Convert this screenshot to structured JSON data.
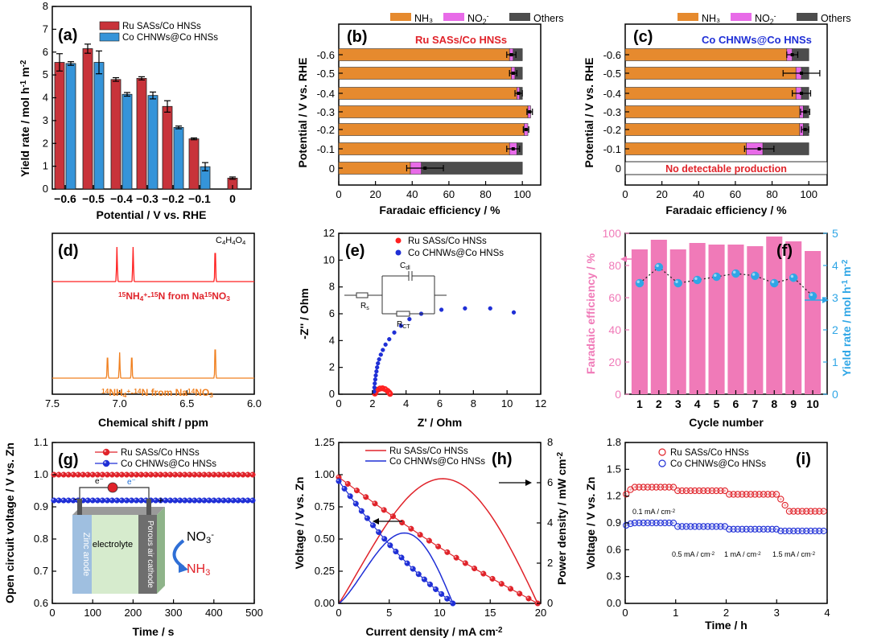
{
  "chart_data": [
    {
      "id": "a",
      "type": "bar",
      "panel_label": "(a)",
      "xlabel": "Potential / V vs. RHE",
      "ylabel": "Yield rate / mol h⁻¹ m⁻²",
      "categories": [
        "-0.6",
        "-0.5",
        "-0.4",
        "-0.3",
        "-0.2",
        "-0.1",
        "0"
      ],
      "ylim": [
        0,
        8
      ],
      "yticks": [
        0,
        1,
        2,
        3,
        4,
        5,
        6,
        7,
        8
      ],
      "legend_position": "top-right",
      "series": [
        {
          "name": "Ru SASs/Co HNSs",
          "color": "#c8333a",
          "values": [
            5.55,
            6.15,
            4.8,
            4.85,
            3.62,
            2.2,
            0.48
          ],
          "errors": [
            0.38,
            0.2,
            0.08,
            0.07,
            0.25,
            0.04,
            0.05
          ]
        },
        {
          "name": "Co CHNWs@Co HNSs",
          "color": "#3594d9",
          "values": [
            5.5,
            5.55,
            4.15,
            4.1,
            2.7,
            0.98,
            null
          ],
          "errors": [
            0.08,
            0.5,
            0.08,
            0.15,
            0.06,
            0.18,
            null
          ]
        }
      ],
      "tick_labels_x": [
        "−0.6",
        "−0.5",
        "−0.4",
        "−0.3",
        "−0.2",
        "−0.1",
        "0"
      ]
    },
    {
      "id": "b",
      "type": "bar",
      "orientation": "horizontal-stacked",
      "panel_label": "(b)",
      "title": "Ru SASs/Co HNSs",
      "title_color": "#e0232a",
      "xlabel": "Faradaic efficiency / %",
      "ylabel": "Potential / V vs. RHE",
      "categories": [
        "-0.6",
        "-0.5",
        "-0.4",
        "-0.3",
        "-0.2",
        "-0.1",
        "0"
      ],
      "xlim": [
        0,
        110
      ],
      "xticks": [
        0,
        20,
        40,
        60,
        80,
        100
      ],
      "legend_position": "top",
      "series": [
        {
          "name": "NH₃",
          "color": "#e68a2e",
          "values": [
            93,
            94,
            97,
            103,
            101,
            93,
            39
          ]
        },
        {
          "name": "NO₂⁻",
          "color": "#e86be8",
          "values": [
            2,
            2,
            1.5,
            1.5,
            2,
            4,
            6
          ]
        },
        {
          "name": "Others",
          "color": "#4d4d4d",
          "values": [
            5,
            4,
            1.5,
            0,
            0,
            3,
            55
          ]
        }
      ],
      "error_center": [
        94,
        95,
        98,
        104,
        102,
        95,
        47
      ],
      "error_width": [
        2.5,
        2,
        2,
        1.5,
        1.5,
        3.5,
        10
      ]
    },
    {
      "id": "c",
      "type": "bar",
      "orientation": "horizontal-stacked",
      "panel_label": "(c)",
      "title": "Co CHNWs@Co HNSs",
      "title_color": "#1f2fd6",
      "annotation": "No detectable production",
      "annotation_color": "#e0232a",
      "xlabel": "Faradaic efficiency / %",
      "ylabel": "Potential / V vs. RHE",
      "categories": [
        "-0.6",
        "-0.5",
        "-0.4",
        "-0.3",
        "-0.2",
        "-0.1",
        "0"
      ],
      "xlim": [
        0,
        110
      ],
      "xticks": [
        0,
        20,
        40,
        60,
        80,
        100
      ],
      "legend_position": "top",
      "series": [
        {
          "name": "NH₃",
          "color": "#e68a2e",
          "values": [
            88,
            93,
            93,
            95,
            95,
            66,
            0
          ]
        },
        {
          "name": "NO₂⁻",
          "color": "#e86be8",
          "values": [
            3,
            3,
            3,
            2,
            2,
            9,
            0
          ]
        },
        {
          "name": "Others",
          "color": "#4d4d4d",
          "values": [
            9,
            4,
            4,
            3,
            3,
            25,
            0
          ]
        }
      ],
      "error_center": [
        91,
        96,
        96,
        98,
        98,
        73,
        null
      ],
      "error_width": [
        3,
        10,
        5,
        2.5,
        2,
        8,
        null
      ]
    },
    {
      "id": "d",
      "type": "line",
      "panel_label": "(d)",
      "xlabel": "Chemical shift / ppm",
      "xlim": [
        7.5,
        6.0
      ],
      "xticks": [
        7.5,
        7.0,
        6.5,
        6.0
      ],
      "tick_labels_x": [
        "7.5",
        "7.0",
        "6.5",
        "6.0"
      ],
      "series": [
        {
          "name": "¹⁵NH₄⁺-¹⁵N from Na¹⁵NO₃",
          "color": "#ff2020",
          "doublet_ppm": [
            7.02,
            6.9
          ],
          "reference_peak_ppm": 6.29
        },
        {
          "name": "¹⁴NH₄⁺-¹⁴N from Na¹⁴NO₃",
          "color": "#f08020",
          "triplet_ppm": [
            7.09,
            7.0,
            6.91
          ],
          "reference_peak_ppm": 6.29
        }
      ],
      "annotations": [
        "C₄H₄O₄",
        "¹⁵NH₄⁺-¹⁵N from Na¹⁵NO₃",
        "¹⁴NH₄⁺-¹⁴N from Na¹⁴NO₃"
      ]
    },
    {
      "id": "e",
      "type": "scatter",
      "panel_label": "(e)",
      "xlabel": "Z' / Ohm",
      "ylabel": "-Z'' / Ohm",
      "xlim": [
        0,
        12
      ],
      "ylim": [
        0,
        12
      ],
      "xticks": [
        0,
        2,
        4,
        6,
        8,
        10,
        12
      ],
      "yticks": [
        0,
        2,
        4,
        6,
        8,
        10,
        12
      ],
      "legend_position": "top-right",
      "circuit_labels": {
        "dl": "C",
        "dl_sub": "dl",
        "s": "R",
        "s_sub": "s",
        "ct": "R",
        "ct_sub": "CT"
      },
      "series": [
        {
          "name": "Ru SASs/Co HNSs",
          "color": "#ff2020",
          "x": [
            2.15,
            2.2,
            2.3,
            2.45,
            2.6,
            2.75,
            2.9,
            3.0,
            3.05
          ],
          "y": [
            0.05,
            0.2,
            0.33,
            0.42,
            0.44,
            0.38,
            0.25,
            0.12,
            0.03
          ]
        },
        {
          "name": "Co CHNWs@Co HNSs",
          "color": "#1f2fd6",
          "x": [
            2.1,
            2.12,
            2.14,
            2.17,
            2.2,
            2.24,
            2.28,
            2.33,
            2.4,
            2.5,
            2.62,
            2.78,
            3.0,
            3.3,
            3.7,
            4.2,
            4.9,
            6.1,
            7.5,
            9.0,
            10.4
          ],
          "y": [
            0.2,
            0.5,
            0.8,
            1.1,
            1.4,
            1.7,
            2.0,
            2.3,
            2.6,
            2.95,
            3.3,
            3.7,
            4.1,
            4.6,
            5.1,
            5.6,
            6.0,
            6.3,
            6.4,
            6.4,
            6.1
          ]
        }
      ]
    },
    {
      "id": "f",
      "type": "bar",
      "panel_label": "(f)",
      "xlabel": "Cycle number",
      "ylabel": "Faradaic efficiency / %",
      "ylabel_right": "Yield rate / mol h⁻¹ m⁻²",
      "categories": [
        "1",
        "2",
        "3",
        "4",
        "5",
        "6",
        "7",
        "8",
        "9",
        "10"
      ],
      "ylim": [
        0,
        100
      ],
      "ylim_right": [
        0,
        5
      ],
      "yticks": [
        0,
        20,
        40,
        60,
        80,
        100
      ],
      "yticks_right": [
        0,
        1,
        2,
        3,
        4,
        5
      ],
      "series": [
        {
          "name": "Faradaic efficiency",
          "color": "#f07ab8",
          "values": [
            90,
            96,
            90,
            94,
            93,
            93,
            92,
            98,
            95,
            89
          ],
          "axis": "left"
        },
        {
          "name": "Yield rate",
          "color": "#2fa6e6",
          "values": [
            3.45,
            3.95,
            3.45,
            3.55,
            3.65,
            3.75,
            3.68,
            3.45,
            3.62,
            3.05
          ],
          "axis": "right"
        }
      ]
    },
    {
      "id": "g",
      "type": "line",
      "panel_label": "(g)",
      "xlabel": "Time / s",
      "ylabel": "Open circuit voltage / V vs. Zn",
      "xlim": [
        0,
        500
      ],
      "ylim": [
        0.6,
        1.1
      ],
      "xticks": [
        0,
        100,
        200,
        300,
        400,
        500
      ],
      "yticks": [
        0.6,
        0.7,
        0.8,
        0.9,
        1.0,
        1.1
      ],
      "tick_labels_y": [
        "0.6",
        "0.7",
        "0.8",
        "0.9",
        "1.0",
        "1.1"
      ],
      "legend_position": "top",
      "series": [
        {
          "name": "Ru SASs/Co HNSs",
          "color": "#e0232a",
          "constant": 1.0
        },
        {
          "name": "Co CHNWs@Co HNSs",
          "color": "#1f2fd6",
          "constant": 0.92
        }
      ],
      "inset": {
        "anode": "Zinc anode",
        "electrolyte": "electrolyte",
        "cathode": "Porous air cathode",
        "reactant": "NO₃⁻",
        "product": "NH₃",
        "electron": "e⁻",
        "minus": "-",
        "plus": "+"
      }
    },
    {
      "id": "h",
      "type": "line",
      "panel_label": "(h)",
      "xlabel": "Current density / mA cm⁻²",
      "ylabel": "Voltage / V vs. Zn",
      "ylabel_right": "Power density / mW cm⁻²",
      "xlim": [
        0,
        20
      ],
      "ylim": [
        0,
        1.25
      ],
      "ylim_right": [
        0,
        8
      ],
      "xticks": [
        0,
        5,
        10,
        15,
        20
      ],
      "yticks": [
        0,
        0.25,
        0.5,
        0.75,
        1.0,
        1.25
      ],
      "tick_labels_y": [
        "0.00",
        "0.25",
        "0.50",
        "0.75",
        "1.00",
        "1.25"
      ],
      "yticks_right": [
        0,
        2,
        4,
        6,
        8
      ],
      "legend_position": "top-left",
      "series": [
        {
          "name": "Ru SASs/Co HNSs",
          "color": "#e0232a",
          "v0": 0.98,
          "i_max": 19.7,
          "p_peak": 6.2,
          "p_peak_i": 10.3
        },
        {
          "name": "Co CHNWs@Co HNSs",
          "color": "#1f2fd6",
          "v0": 0.95,
          "i_max": 11.3,
          "p_peak": 3.5,
          "p_peak_i": 6.5
        }
      ]
    },
    {
      "id": "i",
      "type": "scatter",
      "panel_label": "(i)",
      "xlabel": "Time / h",
      "ylabel": "Voltage / V vs. Zn",
      "xlim": [
        0,
        4
      ],
      "ylim": [
        0,
        1.8
      ],
      "xticks": [
        0,
        1,
        2,
        3,
        4
      ],
      "yticks": [
        0,
        0.3,
        0.6,
        0.9,
        1.2,
        1.5,
        1.8
      ],
      "tick_labels_y": [
        "0.0",
        "0.3",
        "0.6",
        "0.9",
        "1.2",
        "1.5",
        "1.8"
      ],
      "legend_position": "top",
      "annotations": [
        "0.1 mA / cm⁻²",
        "0.5 mA / cm⁻²",
        "1 mA / cm⁻²",
        "1.5 mA / cm⁻²"
      ],
      "series": [
        {
          "name": "Ru SASs/Co HNSs",
          "color": "#e0232a",
          "segments": [
            1.3,
            1.26,
            1.22,
            1.03
          ]
        },
        {
          "name": "Co CHNWs@Co HNSs",
          "color": "#1f2fd6",
          "segments": [
            0.9,
            0.86,
            0.83,
            0.81
          ]
        }
      ]
    }
  ]
}
